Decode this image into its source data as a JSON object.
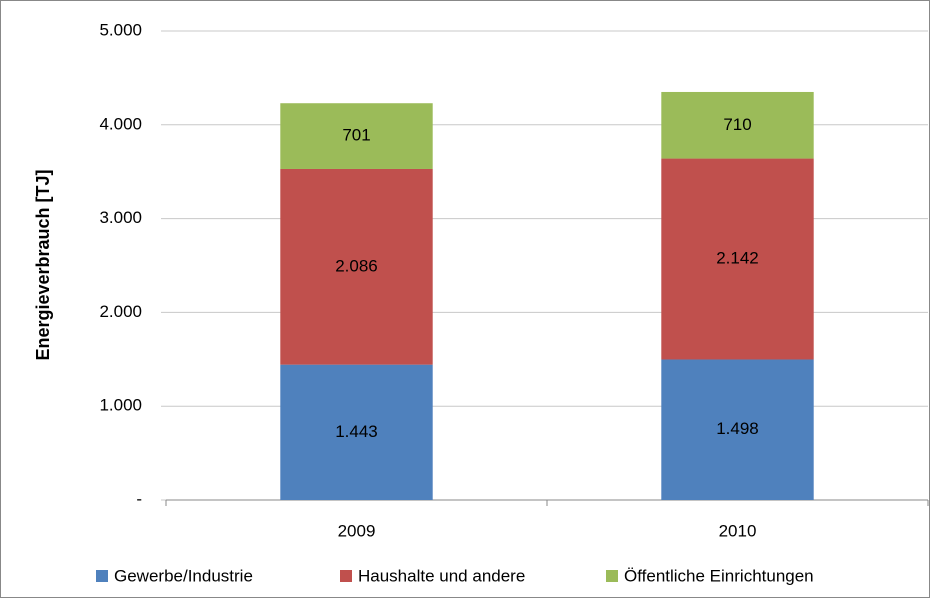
{
  "chart_data": {
    "type": "stacked_bar",
    "y_label": "Energieverbrauch [TJ]",
    "categories": [
      "2009",
      "2010"
    ],
    "series": [
      {
        "name": "Gewerbe/Industrie",
        "color": "#4f81bd",
        "values": [
          1443,
          1498
        ],
        "value_labels": [
          "1.443",
          "1.498"
        ]
      },
      {
        "name": "Haushalte und andere",
        "color": "#c0504d",
        "values": [
          2086,
          2142
        ],
        "value_labels": [
          "2.086",
          "2.142"
        ]
      },
      {
        "name": "Öffentliche Einrichtungen",
        "color": "#9bbb59",
        "values": [
          701,
          710
        ],
        "value_labels": [
          "701",
          "710"
        ]
      }
    ],
    "ylim": [
      0,
      5000
    ],
    "yticks": [
      {
        "value": 0,
        "label": "-"
      },
      {
        "value": 1000,
        "label": "1.000"
      },
      {
        "value": 2000,
        "label": "2.000"
      },
      {
        "value": 3000,
        "label": "3.000"
      },
      {
        "value": 4000,
        "label": "4.000"
      },
      {
        "value": 5000,
        "label": "5.000"
      }
    ],
    "grid": true,
    "legend": "bottom"
  }
}
